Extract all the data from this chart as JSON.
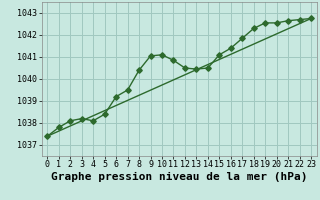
{
  "title": "Graphe pression niveau de la mer (hPa)",
  "xlabel_ticks": [
    0,
    1,
    2,
    3,
    4,
    5,
    6,
    7,
    8,
    9,
    10,
    11,
    12,
    13,
    14,
    15,
    16,
    17,
    18,
    19,
    20,
    21,
    22,
    23
  ],
  "ylim": [
    1036.5,
    1043.5
  ],
  "yticks": [
    1037,
    1038,
    1039,
    1040,
    1041,
    1042,
    1043
  ],
  "background_color": "#c8e8e0",
  "grid_color": "#a0c8c0",
  "line_color": "#2d6a2d",
  "line_jagged_x": [
    0,
    1,
    2,
    3,
    4,
    5,
    6,
    7,
    8,
    9,
    10,
    11,
    12,
    13,
    14,
    15,
    16,
    17,
    18,
    19,
    20,
    21,
    22,
    23
  ],
  "line_jagged_y": [
    1037.4,
    1037.8,
    1038.1,
    1038.2,
    1038.1,
    1038.4,
    1039.2,
    1039.5,
    1040.4,
    1041.05,
    1041.1,
    1040.85,
    1040.5,
    1040.45,
    1040.5,
    1041.1,
    1041.4,
    1041.85,
    1042.3,
    1042.55,
    1042.55,
    1042.65,
    1042.7,
    1042.75
  ],
  "line_trend_x": [
    0,
    23
  ],
  "line_trend_y": [
    1037.4,
    1042.75
  ],
  "title_fontsize": 8,
  "tick_fontsize": 6
}
